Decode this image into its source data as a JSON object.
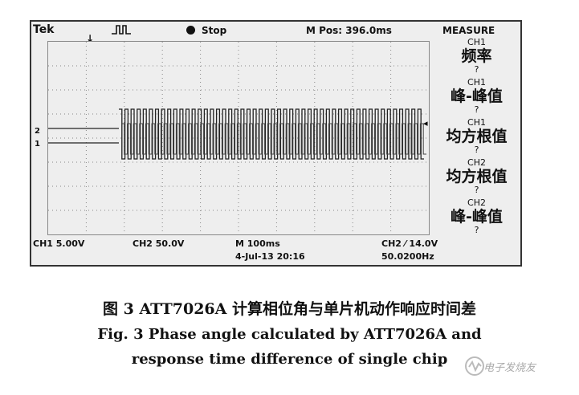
{
  "topbar": {
    "brand": "Tek",
    "status": "Stop",
    "mpos": "M Pos: 396.0ms",
    "measure_title": "MEASURE"
  },
  "grid": {
    "ch2_marker": "2",
    "ch1_marker": "1"
  },
  "measure": [
    {
      "ch": "CH1",
      "name": "频率",
      "value": "?"
    },
    {
      "ch": "CH1",
      "name": "峰-峰值",
      "value": "?"
    },
    {
      "ch": "CH1",
      "name": "均方根值",
      "value": "?"
    },
    {
      "ch": "CH2",
      "name": "均方根值",
      "value": "?"
    },
    {
      "ch": "CH2",
      "name": "峰-峰值",
      "value": "?"
    }
  ],
  "bottombar": {
    "ch1": "CH1  5.00V",
    "ch2": "CH2  50.0V",
    "timebase": "M 100ms",
    "date": "4-Jul-13 20:16",
    "trigger": "CH2 ⁄ 14.0V",
    "freq": "50.0200Hz"
  },
  "caption": {
    "cn": "图 3    ATT7026A 计算相位角与单片机动作响应时间差",
    "en_line1": "Fig. 3    Phase angle calculated by ATT7026A and",
    "en_line2": "response time difference of single chip"
  },
  "watermark": "电子发烧友"
}
